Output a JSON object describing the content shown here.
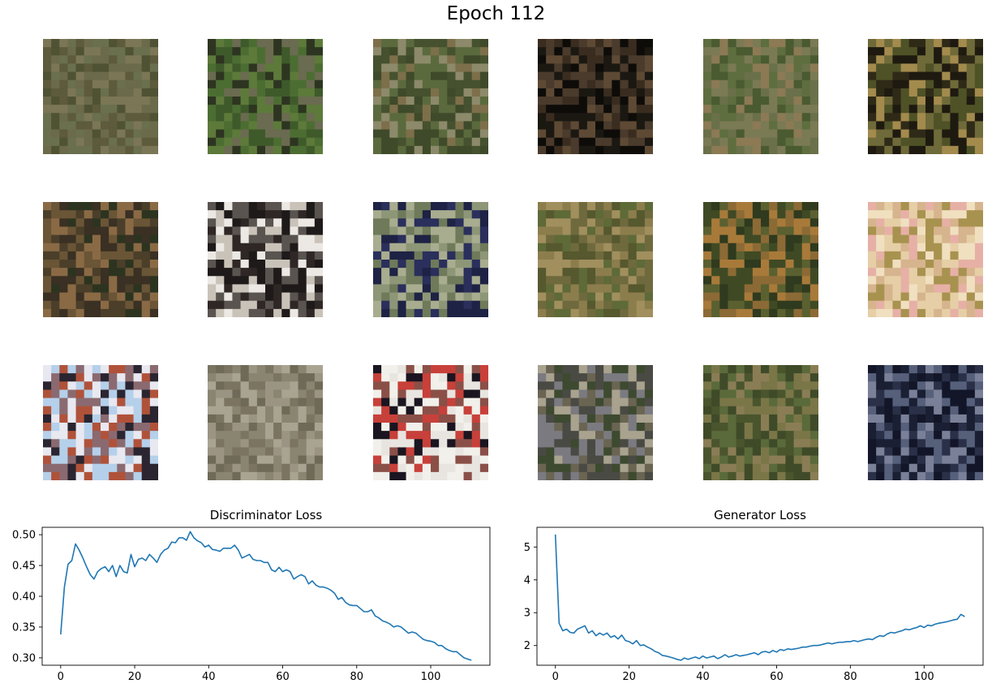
{
  "figure": {
    "title": "Epoch 112"
  },
  "samples": {
    "rows": 3,
    "cols": 6,
    "palettes": [
      [
        "#5d5b3c",
        "#6b6a4a",
        "#4f5233",
        "#7b7655",
        "#6a6f4e"
      ],
      [
        "#3f5a2a",
        "#5d7a3a",
        "#2d3521",
        "#6a6b50",
        "#4c6d32"
      ],
      [
        "#5b6a3d",
        "#7d6f4a",
        "#45512f",
        "#8c8a6a",
        "#3f4a2a"
      ],
      [
        "#1b1812",
        "#3a2d20",
        "#5e4a34",
        "#0e0c09",
        "#4a3b2c"
      ],
      [
        "#5e6e3e",
        "#7a7a55",
        "#8c7a55",
        "#4a5a31",
        "#6a704a"
      ],
      [
        "#2f2a17",
        "#4e5226",
        "#a38a4d",
        "#1e1a10",
        "#6f6a39"
      ],
      [
        "#3a3023",
        "#6a5536",
        "#2c3420",
        "#8a6a45",
        "#4b3f2a"
      ],
      [
        "#1e1a1a",
        "#ece8e4",
        "#5a5450",
        "#c9c2b8",
        "#2e2725"
      ],
      [
        "#8d9677",
        "#1e2244",
        "#a9ad8f",
        "#6f7a5a",
        "#2a2f5c"
      ],
      [
        "#6f6a3e",
        "#8c7d4d",
        "#56582e",
        "#a18f5e",
        "#5e6a38"
      ],
      [
        "#3f4a24",
        "#8c6a35",
        "#2f3a1e",
        "#a87a3a",
        "#5a6030"
      ],
      [
        "#e6cfa6",
        "#d6b48d",
        "#f0e0c0",
        "#a8924f",
        "#e7b0a6"
      ],
      [
        "#b5d0ea",
        "#b0523a",
        "#2a2530",
        "#e8e8f0",
        "#8a6a70"
      ],
      [
        "#8a8570",
        "#9b9482",
        "#7a7460",
        "#a9a492",
        "#6f6a58"
      ],
      [
        "#e8e5e0",
        "#c8403a",
        "#1a1520",
        "#f2f0ea",
        "#8a5048"
      ],
      [
        "#4a4a44",
        "#a8a28e",
        "#6a6452",
        "#7a7a80",
        "#3d4a30"
      ],
      [
        "#5a6a3a",
        "#7a7648",
        "#4a552d",
        "#8a7d55",
        "#3f4a28"
      ],
      [
        "#1a1f33",
        "#56607a",
        "#2a3048",
        "#7a8098",
        "#121628"
      ]
    ]
  },
  "chart_data": [
    {
      "type": "line",
      "title": "Discriminator Loss",
      "xlabel": "",
      "ylabel": "",
      "xlim": [
        -5,
        116
      ],
      "ylim": [
        0.288,
        0.512
      ],
      "xticks": [
        0,
        20,
        40,
        60,
        80,
        100
      ],
      "xtick_labels": [
        "0",
        "20",
        "40",
        "60",
        "80",
        "100"
      ],
      "yticks": [
        0.3,
        0.35,
        0.4,
        0.45,
        0.5
      ],
      "ytick_labels": [
        "0.30",
        "0.35",
        "0.40",
        "0.45",
        "0.50"
      ],
      "series": [
        {
          "name": "",
          "color": "#1f77b4",
          "x": [
            0,
            1,
            2,
            3,
            4,
            5,
            6,
            7,
            8,
            9,
            10,
            11,
            12,
            13,
            14,
            15,
            16,
            17,
            18,
            19,
            20,
            21,
            22,
            23,
            24,
            25,
            26,
            27,
            28,
            29,
            30,
            31,
            32,
            33,
            34,
            35,
            36,
            37,
            38,
            39,
            40,
            41,
            42,
            43,
            44,
            45,
            46,
            47,
            48,
            49,
            50,
            51,
            52,
            53,
            54,
            55,
            56,
            57,
            58,
            59,
            60,
            61,
            62,
            63,
            64,
            65,
            66,
            67,
            68,
            69,
            70,
            71,
            72,
            73,
            74,
            75,
            76,
            77,
            78,
            79,
            80,
            81,
            82,
            83,
            84,
            85,
            86,
            87,
            88,
            89,
            90,
            91,
            92,
            93,
            94,
            95,
            96,
            97,
            98,
            99,
            100,
            101,
            102,
            103,
            104,
            105,
            106,
            107,
            108,
            109,
            110,
            111
          ],
          "y": [
            0.338,
            0.415,
            0.452,
            0.458,
            0.485,
            0.475,
            0.462,
            0.448,
            0.435,
            0.428,
            0.44,
            0.445,
            0.448,
            0.44,
            0.45,
            0.432,
            0.45,
            0.44,
            0.438,
            0.468,
            0.448,
            0.46,
            0.462,
            0.458,
            0.468,
            0.462,
            0.455,
            0.468,
            0.475,
            0.478,
            0.488,
            0.487,
            0.495,
            0.495,
            0.491,
            0.505,
            0.495,
            0.49,
            0.487,
            0.48,
            0.483,
            0.476,
            0.475,
            0.473,
            0.478,
            0.478,
            0.478,
            0.483,
            0.475,
            0.462,
            0.465,
            0.468,
            0.46,
            0.458,
            0.458,
            0.455,
            0.455,
            0.443,
            0.44,
            0.447,
            0.44,
            0.443,
            0.44,
            0.428,
            0.432,
            0.435,
            0.432,
            0.42,
            0.425,
            0.418,
            0.415,
            0.415,
            0.413,
            0.41,
            0.405,
            0.395,
            0.398,
            0.39,
            0.386,
            0.385,
            0.385,
            0.38,
            0.375,
            0.375,
            0.378,
            0.368,
            0.365,
            0.36,
            0.358,
            0.355,
            0.35,
            0.352,
            0.35,
            0.345,
            0.34,
            0.342,
            0.34,
            0.335,
            0.33,
            0.328,
            0.327,
            0.325,
            0.32,
            0.32,
            0.315,
            0.312,
            0.31,
            0.31,
            0.305,
            0.3,
            0.298,
            0.296
          ]
        }
      ]
    },
    {
      "type": "line",
      "title": "Generator Loss",
      "xlabel": "",
      "ylabel": "",
      "xlim": [
        -5,
        116
      ],
      "ylim": [
        1.4,
        5.6
      ],
      "xticks": [
        0,
        20,
        40,
        60,
        80,
        100
      ],
      "xtick_labels": [
        "0",
        "20",
        "40",
        "60",
        "80",
        "100"
      ],
      "yticks": [
        2,
        3,
        4,
        5
      ],
      "ytick_labels": [
        "2",
        "3",
        "4",
        "5"
      ],
      "series": [
        {
          "name": "",
          "color": "#1f77b4",
          "x": [
            0,
            1,
            2,
            3,
            4,
            5,
            6,
            7,
            8,
            9,
            10,
            11,
            12,
            13,
            14,
            15,
            16,
            17,
            18,
            19,
            20,
            21,
            22,
            23,
            24,
            25,
            26,
            27,
            28,
            29,
            30,
            31,
            32,
            33,
            34,
            35,
            36,
            37,
            38,
            39,
            40,
            41,
            42,
            43,
            44,
            45,
            46,
            47,
            48,
            49,
            50,
            51,
            52,
            53,
            54,
            55,
            56,
            57,
            58,
            59,
            60,
            61,
            62,
            63,
            64,
            65,
            66,
            67,
            68,
            69,
            70,
            71,
            72,
            73,
            74,
            75,
            76,
            77,
            78,
            79,
            80,
            81,
            82,
            83,
            84,
            85,
            86,
            87,
            88,
            89,
            90,
            91,
            92,
            93,
            94,
            95,
            96,
            97,
            98,
            99,
            100,
            101,
            102,
            103,
            104,
            105,
            106,
            107,
            108,
            109,
            110,
            111
          ],
          "y": [
            5.38,
            2.68,
            2.45,
            2.5,
            2.4,
            2.38,
            2.5,
            2.55,
            2.6,
            2.38,
            2.45,
            2.3,
            2.38,
            2.32,
            2.38,
            2.25,
            2.3,
            2.2,
            2.32,
            2.15,
            2.12,
            2.05,
            2.15,
            2.0,
            2.02,
            1.95,
            1.9,
            1.82,
            1.78,
            1.7,
            1.68,
            1.65,
            1.62,
            1.58,
            1.55,
            1.62,
            1.58,
            1.62,
            1.65,
            1.6,
            1.68,
            1.62,
            1.65,
            1.68,
            1.6,
            1.65,
            1.72,
            1.65,
            1.68,
            1.72,
            1.68,
            1.7,
            1.72,
            1.75,
            1.78,
            1.72,
            1.8,
            1.82,
            1.78,
            1.85,
            1.8,
            1.88,
            1.85,
            1.9,
            1.88,
            1.9,
            1.92,
            1.95,
            1.95,
            1.98,
            2.0,
            2.0,
            2.02,
            2.05,
            2.08,
            2.05,
            2.08,
            2.1,
            2.1,
            2.12,
            2.12,
            2.15,
            2.12,
            2.15,
            2.18,
            2.2,
            2.18,
            2.25,
            2.3,
            2.28,
            2.35,
            2.4,
            2.38,
            2.42,
            2.45,
            2.5,
            2.48,
            2.52,
            2.55,
            2.6,
            2.55,
            2.62,
            2.6,
            2.65,
            2.68,
            2.7,
            2.72,
            2.75,
            2.78,
            2.8,
            2.95,
            2.88
          ]
        }
      ]
    }
  ]
}
